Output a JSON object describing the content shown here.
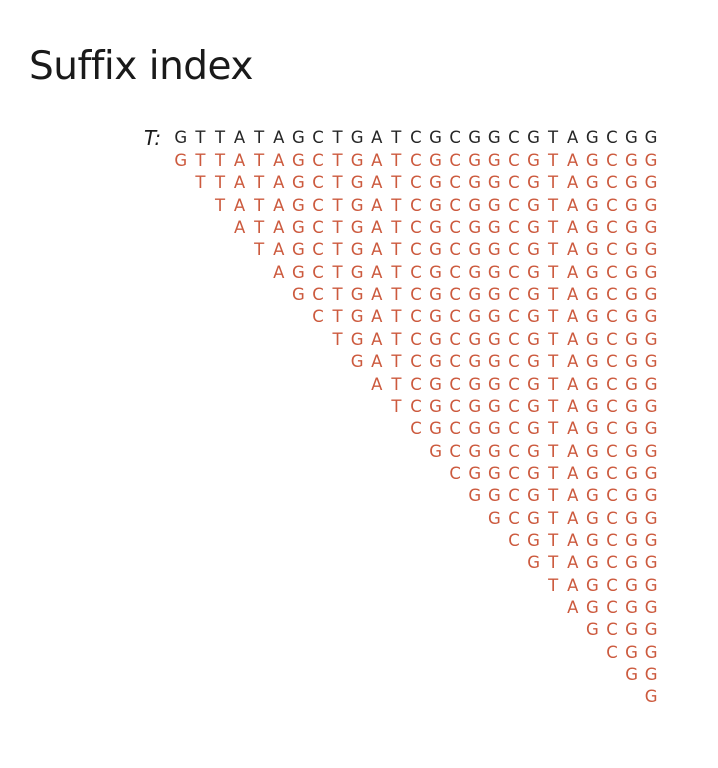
{
  "title": "Suffix index",
  "text_label": "T:",
  "text": "GTTATAGCTGATCGCGGCGTAGCGG",
  "suffixes": [
    "GTTATAGCTGATCGCGGCGTAGCGG",
    "TTATAGCTGATCGCGGCGTAGCGG",
    "TATAGCTGATCGCGGCGTAGCGG",
    "ATAGCTGATCGCGGCGTAGCGG",
    "TAGCTGATCGCGGCGTAGCGG",
    "AGCTGATCGCGGCGTAGCGG",
    "GCTGATCGCGGCGTAGCGG",
    "CTGATCGCGGCGTAGCGG",
    "TGATCGCGGCGTAGCGG",
    "GATCGCGGCGTAGCGG",
    "ATCGCGGCGTAGCGG",
    "TCGCGGCGTAGCGG",
    "CGCGGCGTAGCGG",
    "GCGGCGTAGCGG",
    "CGGCGTAGCGG",
    "GGCGTAGCGG",
    "GCGTAGCGG",
    "CGTAGCGG",
    "GTAGCGG",
    "TAGCGG",
    "AGCGG",
    "GCGG",
    "CGG",
    "GG",
    "G"
  ],
  "colors": {
    "text": "#262626",
    "suffix": "#cc5a3e"
  }
}
